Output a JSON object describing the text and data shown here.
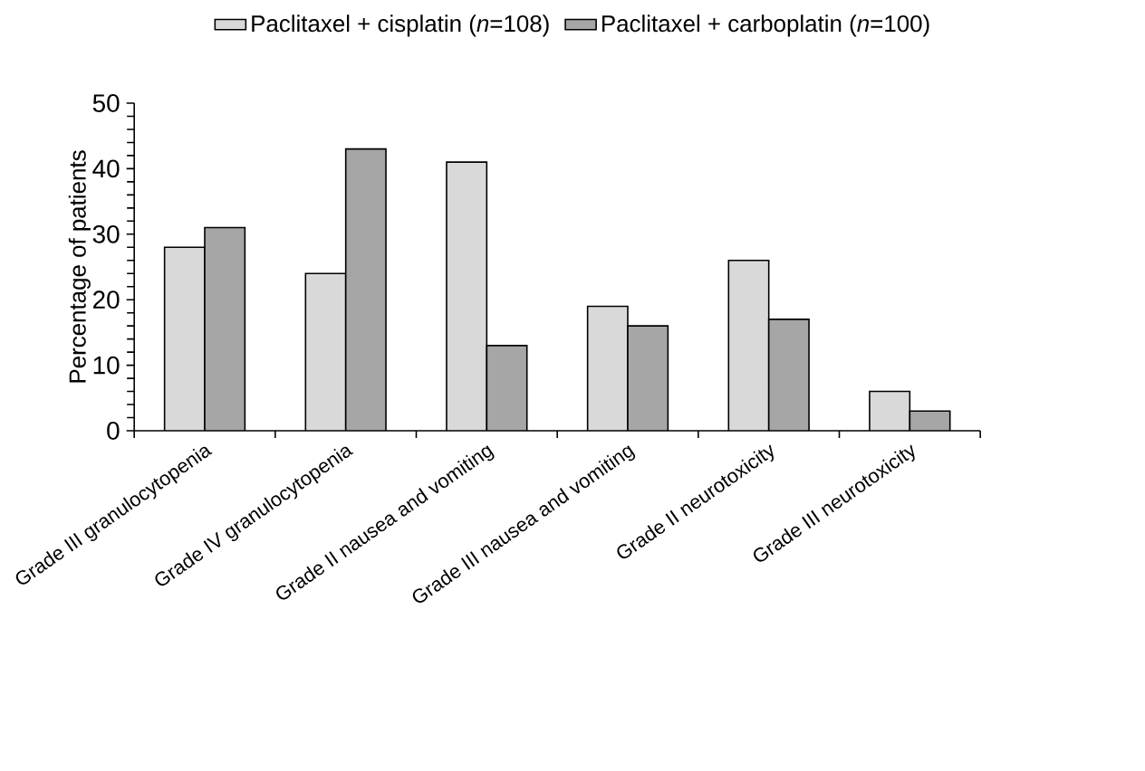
{
  "chart_data": {
    "type": "bar",
    "ylabel": "Percentage of patients",
    "categories": [
      "Grade III granulocytopenia",
      "Grade IV granulocytopenia",
      "Grade II nausea and vomiting",
      "Grade III nausea and vomiting",
      "Grade II neurotoxicity",
      "Grade III neurotoxicity"
    ],
    "series": [
      {
        "name": "Paclitaxel + cisplatin (*n*=108)",
        "color": "#d9d9d9",
        "values": [
          28,
          24,
          41,
          19,
          26,
          6
        ]
      },
      {
        "name": "Paclitaxel + carboplatin (*n*=100)",
        "color": "#a6a6a6",
        "values": [
          31,
          43,
          13,
          16,
          17,
          3
        ]
      }
    ],
    "ylim": [
      0,
      50
    ],
    "yticks": [
      0,
      10,
      20,
      30,
      40,
      50
    ],
    "grid": false,
    "legend": "top"
  }
}
